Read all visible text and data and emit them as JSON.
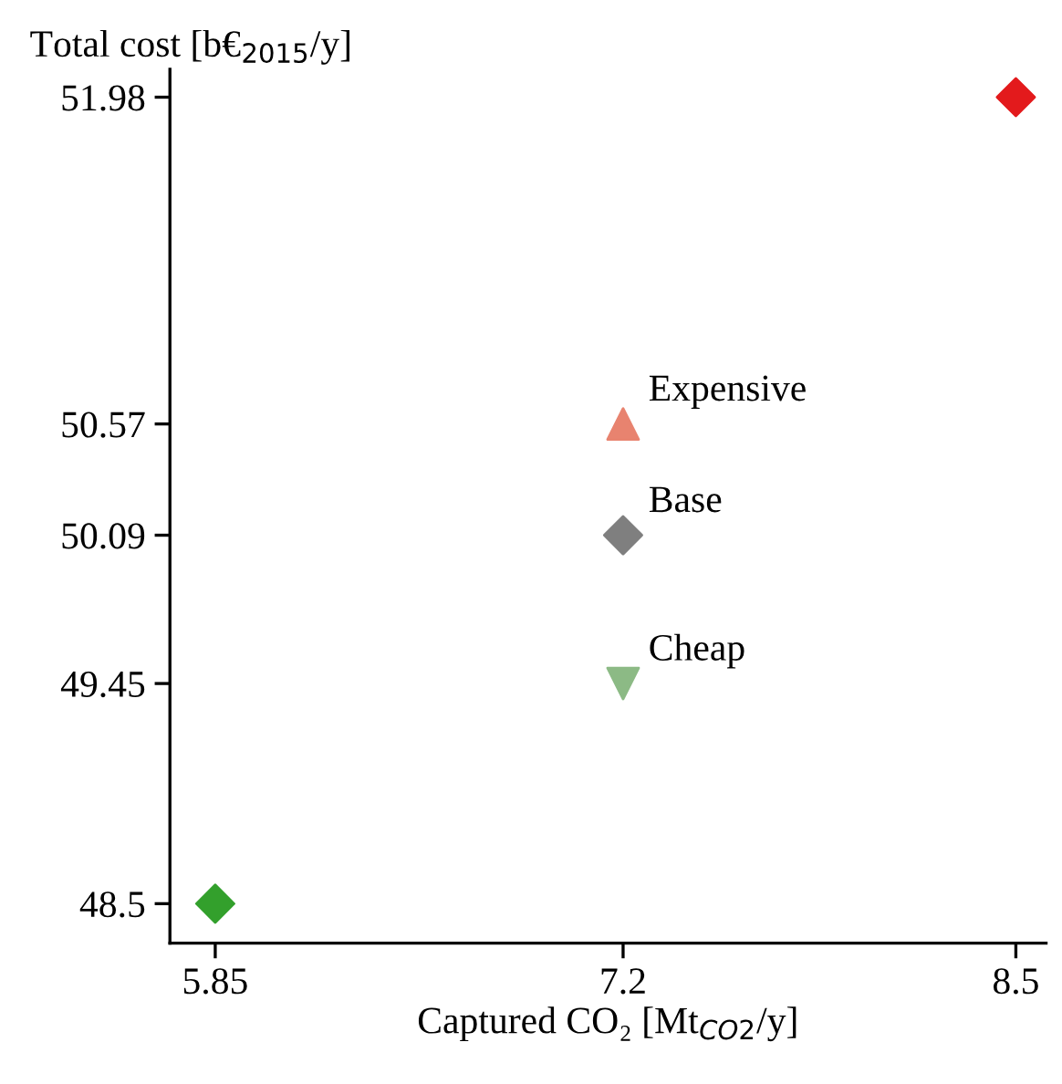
{
  "chart_data": {
    "type": "scatter",
    "xlabel": "Captured CO₂ [Mt$_{CO2}$/y]",
    "ylabel": "Total cost [b€$_{2015}$/y]",
    "xlim": [
      5.7,
      8.6
    ],
    "ylim": [
      48.33,
      52.1
    ],
    "xticks": [
      5.85,
      7.2,
      8.5
    ],
    "yticks": [
      48.5,
      49.45,
      50.09,
      50.57,
      51.98
    ],
    "grid": false,
    "series": [
      {
        "color": "#33a02c",
        "marker": "diamond",
        "x": [
          5.85
        ],
        "values": [
          48.5
        ]
      },
      {
        "name": "Cheap",
        "color": "#8cba85",
        "marker": "triangle_down",
        "x": [
          7.2
        ],
        "values": [
          49.45
        ]
      },
      {
        "name": "Base",
        "color": "#7f7f7f",
        "marker": "diamond",
        "x": [
          7.2
        ],
        "values": [
          50.09
        ]
      },
      {
        "name": "Expensive",
        "color": "#e8836f",
        "marker": "triangle",
        "x": [
          7.2
        ],
        "values": [
          50.57
        ]
      },
      {
        "color": "#e31a1c",
        "marker": "diamond",
        "x": [
          8.5
        ],
        "values": [
          51.98
        ]
      }
    ]
  }
}
